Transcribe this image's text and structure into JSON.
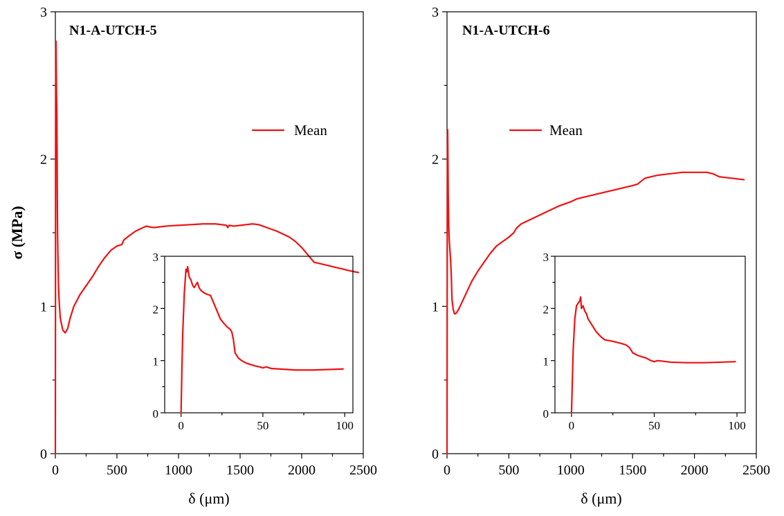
{
  "colors": {
    "series": "#ee1111",
    "axis": "#000000",
    "background": "#ffffff"
  },
  "chart_data": [
    {
      "type": "line",
      "title": "N1-A-UTCH-5",
      "xlabel": "δ (μm)",
      "ylabel": "σ (MPa)",
      "xlim": [
        0,
        2500
      ],
      "ylim": [
        0,
        3
      ],
      "xticks": [
        0,
        500,
        1000,
        1500,
        2000,
        2500
      ],
      "xtick_labels": [
        "0",
        "500",
        "1000",
        "1500",
        "2000",
        "2500"
      ],
      "yticks": [
        0,
        1,
        2,
        3
      ],
      "ytick_labels": [
        "0",
        "1",
        "2",
        "3"
      ],
      "legend": {
        "label": "Mean",
        "placement": "upper-right"
      },
      "series": [
        {
          "name": "Mean",
          "x": [
            0,
            1,
            2,
            3,
            4,
            5,
            6,
            8,
            10,
            12,
            14,
            16,
            18,
            20,
            25,
            30,
            35,
            40,
            50,
            60,
            70,
            80,
            100,
            120,
            150,
            200,
            250,
            300,
            350,
            400,
            450,
            500,
            540,
            555,
            600,
            650,
            700,
            740,
            760,
            800,
            850,
            900,
            950,
            1000,
            1100,
            1200,
            1300,
            1350,
            1390,
            1400,
            1410,
            1450,
            1500,
            1550,
            1600,
            1650,
            1700,
            1800,
            1900,
            1950,
            2000,
            2050,
            2100,
            2200,
            2300,
            2400,
            2460
          ],
          "y": [
            0,
            1.0,
            2.0,
            2.45,
            2.7,
            2.8,
            2.75,
            2.55,
            2.4,
            2.3,
            2.05,
            1.7,
            1.5,
            1.38,
            1.15,
            1.05,
            0.98,
            0.92,
            0.88,
            0.84,
            0.83,
            0.82,
            0.85,
            0.92,
            1.0,
            1.08,
            1.14,
            1.2,
            1.27,
            1.33,
            1.38,
            1.41,
            1.42,
            1.45,
            1.48,
            1.51,
            1.53,
            1.545,
            1.54,
            1.535,
            1.54,
            1.545,
            1.548,
            1.55,
            1.555,
            1.56,
            1.56,
            1.555,
            1.55,
            1.535,
            1.55,
            1.545,
            1.55,
            1.555,
            1.56,
            1.555,
            1.54,
            1.51,
            1.47,
            1.44,
            1.4,
            1.35,
            1.3,
            1.28,
            1.26,
            1.24,
            1.23
          ]
        }
      ],
      "inset": {
        "type": "line",
        "xlim": [
          -10,
          105
        ],
        "ylim": [
          0,
          3
        ],
        "xticks": [
          0,
          50,
          100
        ],
        "xtick_labels": [
          "0",
          "50",
          "100"
        ],
        "yticks": [
          0,
          1,
          2,
          3
        ],
        "ytick_labels": [
          "0",
          "1",
          "2",
          "3"
        ],
        "series": [
          {
            "x": [
              0,
              0.5,
              1,
              2,
              3,
              3.5,
              4,
              5,
              6,
              7,
              8,
              9,
              10,
              11,
              12,
              14,
              16,
              18,
              20,
              22,
              24,
              26,
              28,
              30,
              31,
              32,
              33,
              34,
              35,
              37,
              40,
              45,
              48,
              50,
              52,
              55,
              60,
              70,
              80,
              90,
              99
            ],
            "y": [
              0,
              0.8,
              1.5,
              2.3,
              2.75,
              2.7,
              2.8,
              2.6,
              2.55,
              2.45,
              2.4,
              2.45,
              2.5,
              2.4,
              2.35,
              2.3,
              2.27,
              2.25,
              2.1,
              1.95,
              1.8,
              1.72,
              1.65,
              1.6,
              1.55,
              1.4,
              1.15,
              1.1,
              1.05,
              1.0,
              0.95,
              0.9,
              0.88,
              0.86,
              0.88,
              0.85,
              0.84,
              0.82,
              0.82,
              0.83,
              0.84
            ]
          }
        ]
      }
    },
    {
      "type": "line",
      "title": "N1-A-UTCH-6",
      "xlabel": "δ (μm)",
      "ylabel": "",
      "xlim": [
        0,
        2500
      ],
      "ylim": [
        0,
        3
      ],
      "xticks": [
        0,
        500,
        1000,
        1500,
        2000,
        2500
      ],
      "xtick_labels": [
        "0",
        "500",
        "1000",
        "1500",
        "2000",
        "2500"
      ],
      "yticks": [
        0,
        1,
        2,
        3
      ],
      "ytick_labels": [
        "0",
        "1",
        "2",
        "3"
      ],
      "legend": {
        "label": "Mean",
        "placement": "upper-center"
      },
      "series": [
        {
          "name": "Mean",
          "x": [
            0,
            1,
            2,
            3,
            4,
            5,
            6,
            8,
            10,
            14,
            18,
            22,
            26,
            30,
            35,
            40,
            50,
            60,
            70,
            80,
            100,
            150,
            200,
            250,
            300,
            350,
            400,
            450,
            500,
            540,
            560,
            600,
            650,
            700,
            800,
            900,
            1000,
            1050,
            1100,
            1200,
            1300,
            1400,
            1500,
            1540,
            1600,
            1700,
            1800,
            1900,
            2000,
            2100,
            2150,
            2200,
            2300,
            2400
          ],
          "y": [
            0,
            0.8,
            1.5,
            1.9,
            2.1,
            2.2,
            2.15,
            1.95,
            1.75,
            1.55,
            1.45,
            1.4,
            1.35,
            1.3,
            1.2,
            1.05,
            0.98,
            0.95,
            0.95,
            0.96,
            0.99,
            1.08,
            1.17,
            1.24,
            1.3,
            1.36,
            1.41,
            1.44,
            1.47,
            1.5,
            1.53,
            1.56,
            1.58,
            1.6,
            1.64,
            1.68,
            1.71,
            1.73,
            1.74,
            1.76,
            1.78,
            1.8,
            1.82,
            1.83,
            1.87,
            1.89,
            1.9,
            1.91,
            1.91,
            1.91,
            1.9,
            1.88,
            1.87,
            1.86
          ]
        }
      ],
      "inset": {
        "type": "line",
        "xlim": [
          -10,
          105
        ],
        "ylim": [
          0,
          3
        ],
        "xticks": [
          0,
          50,
          100
        ],
        "xtick_labels": [
          "0",
          "50",
          "100"
        ],
        "yticks": [
          0,
          1,
          2,
          3
        ],
        "ytick_labels": [
          "0",
          "1",
          "2",
          "3"
        ],
        "series": [
          {
            "x": [
              0,
              0.5,
              1,
              2,
              3,
              4,
              5,
              5.5,
              6,
              7,
              8,
              9,
              10,
              12,
              15,
              18,
              20,
              25,
              30,
              33,
              35,
              37,
              40,
              45,
              48,
              50,
              52,
              55,
              60,
              70,
              80,
              90,
              99
            ],
            "y": [
              0,
              0.6,
              1.2,
              1.8,
              2.05,
              2.1,
              2.15,
              2.22,
              2.0,
              2.05,
              1.95,
              1.9,
              1.8,
              1.7,
              1.55,
              1.45,
              1.4,
              1.37,
              1.33,
              1.3,
              1.25,
              1.15,
              1.1,
              1.05,
              1.0,
              0.98,
              1.0,
              0.99,
              0.97,
              0.96,
              0.96,
              0.97,
              0.98
            ]
          }
        ]
      }
    }
  ]
}
